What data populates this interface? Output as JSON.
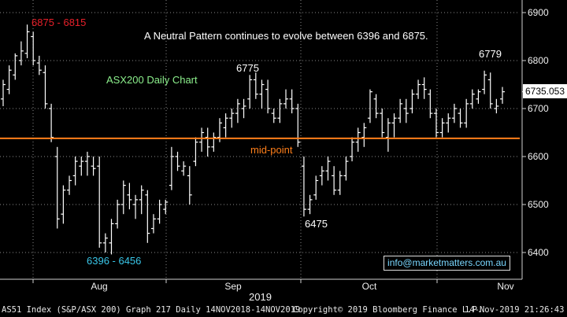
{
  "chart_data": {
    "type": "ohlc",
    "title": "ASX200 Daily Chart",
    "subtitle": "A Neutral Pattern continues to evolve between 6396 and 6875.",
    "ylim": [
      6340,
      6930
    ],
    "y_ticks": [
      6400,
      6500,
      6600,
      6700,
      6800,
      6900
    ],
    "x_ticks": [
      "Aug",
      "Sep",
      "Oct",
      "Nov"
    ],
    "x_year_label": "2019",
    "last_price": "6735.053",
    "hline": {
      "value": 6638,
      "label": "mid-point",
      "color": "#ff7f1a"
    },
    "annotations": [
      {
        "text": "6875 - 6815",
        "color": "#e8202a"
      },
      {
        "text": "6396 - 6456",
        "color": "#39c6e8"
      },
      {
        "text": "6775",
        "color": "#ffffff"
      },
      {
        "text": "6475",
        "color": "#ffffff"
      },
      {
        "text": "6779",
        "color": "#ffffff"
      },
      {
        "text": "A Neutral Pattern continues to evolve between 6396 and 6875.",
        "color": "#ffffff"
      },
      {
        "text": "ASX200 Daily Chart",
        "color": "#8cf08c"
      },
      {
        "text": "mid-point",
        "color": "#ff7f1a"
      }
    ],
    "ohlc": [
      [
        6720,
        6760,
        6705,
        6750
      ],
      [
        6740,
        6790,
        6730,
        6780
      ],
      [
        6770,
        6815,
        6760,
        6810
      ],
      [
        6800,
        6840,
        6790,
        6820
      ],
      [
        6815,
        6875,
        6805,
        6860
      ],
      [
        6850,
        6860,
        6790,
        6800
      ],
      [
        6795,
        6810,
        6770,
        6780
      ],
      [
        6775,
        6790,
        6700,
        6710
      ],
      [
        6700,
        6710,
        6630,
        6640
      ],
      [
        6600,
        6620,
        6450,
        6470
      ],
      [
        6480,
        6540,
        6460,
        6530
      ],
      [
        6530,
        6560,
        6520,
        6550
      ],
      [
        6560,
        6600,
        6540,
        6590
      ],
      [
        6580,
        6600,
        6560,
        6590
      ],
      [
        6590,
        6610,
        6560,
        6600
      ],
      [
        6580,
        6600,
        6560,
        6575
      ],
      [
        6580,
        6600,
        6410,
        6420
      ],
      [
        6420,
        6440,
        6400,
        6430
      ],
      [
        6420,
        6470,
        6396,
        6460
      ],
      [
        6460,
        6510,
        6450,
        6500
      ],
      [
        6500,
        6550,
        6480,
        6540
      ],
      [
        6520,
        6545,
        6490,
        6510
      ],
      [
        6500,
        6520,
        6470,
        6510
      ],
      [
        6510,
        6540,
        6480,
        6530
      ],
      [
        6520,
        6530,
        6420,
        6440
      ],
      [
        6450,
        6480,
        6440,
        6470
      ],
      [
        6470,
        6510,
        6460,
        6500
      ],
      [
        6490,
        6510,
        6480,
        6505
      ],
      [
        6540,
        6620,
        6530,
        6600
      ],
      [
        6600,
        6610,
        6570,
        6580
      ],
      [
        6570,
        6590,
        6560,
        6580
      ],
      [
        6560,
        6580,
        6500,
        6520
      ],
      [
        6590,
        6640,
        6580,
        6630
      ],
      [
        6630,
        6660,
        6610,
        6650
      ],
      [
        6640,
        6660,
        6600,
        6620
      ],
      [
        6620,
        6650,
        6610,
        6640
      ],
      [
        6640,
        6680,
        6630,
        6670
      ],
      [
        6660,
        6690,
        6640,
        6680
      ],
      [
        6680,
        6700,
        6660,
        6690
      ],
      [
        6690,
        6720,
        6670,
        6710
      ],
      [
        6700,
        6720,
        6680,
        6705
      ],
      [
        6720,
        6770,
        6700,
        6760
      ],
      [
        6760,
        6775,
        6720,
        6730
      ],
      [
        6730,
        6760,
        6700,
        6750
      ],
      [
        6740,
        6760,
        6690,
        6700
      ],
      [
        6690,
        6700,
        6670,
        6680
      ],
      [
        6680,
        6720,
        6670,
        6710
      ],
      [
        6710,
        6740,
        6700,
        6720
      ],
      [
        6720,
        6740,
        6690,
        6700
      ],
      [
        6700,
        6710,
        6620,
        6630
      ],
      [
        6580,
        6600,
        6475,
        6490
      ],
      [
        6490,
        6520,
        6480,
        6510
      ],
      [
        6520,
        6560,
        6510,
        6550
      ],
      [
        6560,
        6580,
        6540,
        6570
      ],
      [
        6570,
        6600,
        6550,
        6590
      ],
      [
        6560,
        6580,
        6520,
        6530
      ],
      [
        6530,
        6570,
        6520,
        6560
      ],
      [
        6560,
        6600,
        6550,
        6590
      ],
      [
        6600,
        6640,
        6590,
        6630
      ],
      [
        6630,
        6660,
        6610,
        6650
      ],
      [
        6640,
        6670,
        6620,
        6660
      ],
      [
        6680,
        6740,
        6670,
        6735
      ],
      [
        6720,
        6730,
        6680,
        6690
      ],
      [
        6690,
        6700,
        6640,
        6650
      ],
      [
        6640,
        6680,
        6610,
        6670
      ],
      [
        6670,
        6690,
        6640,
        6680
      ],
      [
        6680,
        6720,
        6670,
        6710
      ],
      [
        6700,
        6720,
        6670,
        6690
      ],
      [
        6700,
        6740,
        6690,
        6730
      ],
      [
        6730,
        6760,
        6720,
        6750
      ],
      [
        6750,
        6765,
        6720,
        6740
      ],
      [
        6730,
        6740,
        6680,
        6690
      ],
      [
        6690,
        6700,
        6640,
        6650
      ],
      [
        6650,
        6680,
        6640,
        6670
      ],
      [
        6670,
        6690,
        6650,
        6680
      ],
      [
        6680,
        6710,
        6670,
        6700
      ],
      [
        6690,
        6700,
        6660,
        6670
      ],
      [
        6670,
        6720,
        6660,
        6710
      ],
      [
        6710,
        6740,
        6700,
        6730
      ],
      [
        6720,
        6740,
        6710,
        6735
      ],
      [
        6740,
        6779,
        6730,
        6770
      ],
      [
        6760,
        6775,
        6700,
        6710
      ],
      [
        6700,
        6720,
        6690,
        6705
      ],
      [
        6720,
        6745,
        6710,
        6735
      ]
    ]
  },
  "price_tag": "6735.053",
  "email": "info@marketmatters.com.au",
  "footer": {
    "left": "AS51 Index (S&P/ASX 200) Graph 217  Daily 14NOV2018-14NOV2019",
    "copyright": "Copyright© 2019 Bloomberg Finance L.P.",
    "timestamp": "14-Nov-2019 21:26:43"
  },
  "colors": {
    "background": "#000000",
    "bars": "#ffffff",
    "midline": "#ff7f1a"
  }
}
